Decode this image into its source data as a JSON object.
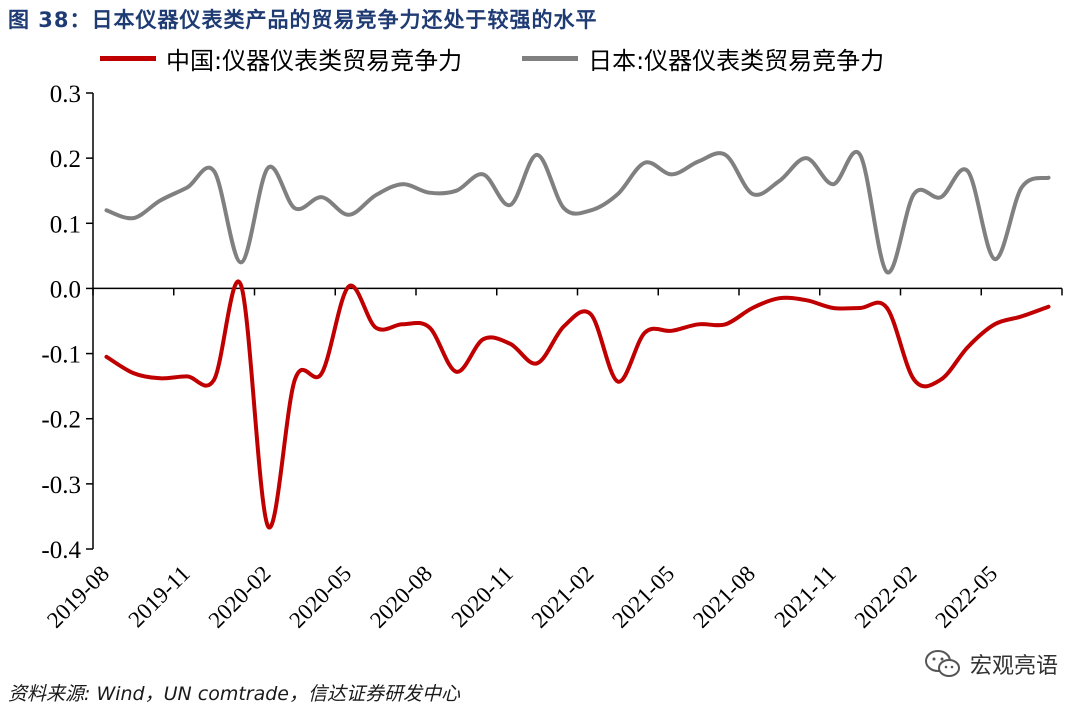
{
  "figure": {
    "title": "图 38：日本仪器仪表类产品的贸易竞争力还处于较强的水平",
    "source": "资料来源: Wind，UN comtrade，信达证券研发中心",
    "watermark": "宏观亮语",
    "watermark_icon": "wechat-icon"
  },
  "chart_data": {
    "type": "line",
    "title": "",
    "xlabel": "",
    "ylabel": "",
    "ylim": [
      -0.4,
      0.3
    ],
    "yticks": [
      "0.3",
      "0.2",
      "0.1",
      "0.0",
      "-0.1",
      "-0.2",
      "-0.3",
      "-0.4"
    ],
    "x": [
      "2019-08",
      "2019-09",
      "2019-10",
      "2019-11",
      "2019-12",
      "2020-01",
      "2020-02",
      "2020-03",
      "2020-04",
      "2020-05",
      "2020-06",
      "2020-07",
      "2020-08",
      "2020-09",
      "2020-10",
      "2020-11",
      "2020-12",
      "2021-01",
      "2021-02",
      "2021-03",
      "2021-04",
      "2021-05",
      "2021-06",
      "2021-07",
      "2021-08",
      "2021-09",
      "2021-10",
      "2021-11",
      "2021-12",
      "2022-01",
      "2022-02",
      "2022-03",
      "2022-04",
      "2022-05",
      "2022-06",
      "2022-07"
    ],
    "xtick_labels": [
      "2019-08",
      "2019-11",
      "2020-02",
      "2020-05",
      "2020-08",
      "2020-11",
      "2021-02",
      "2021-05",
      "2021-08",
      "2021-11",
      "2022-02",
      "2022-05"
    ],
    "series": [
      {
        "name": "中国:仪器仪表类贸易竞争力",
        "color": "#c00000",
        "values": [
          -0.105,
          -0.13,
          -0.138,
          -0.135,
          -0.14,
          0.005,
          -0.365,
          -0.14,
          -0.13,
          0.003,
          -0.06,
          -0.055,
          -0.06,
          -0.128,
          -0.078,
          -0.085,
          -0.115,
          -0.058,
          -0.04,
          -0.143,
          -0.068,
          -0.065,
          -0.055,
          -0.055,
          -0.03,
          -0.015,
          -0.018,
          -0.03,
          -0.03,
          -0.03,
          -0.14,
          -0.14,
          -0.09,
          -0.055,
          -0.043,
          -0.028
        ]
      },
      {
        "name": "日本:仪器仪表类贸易竞争力",
        "color": "#808080",
        "values": [
          0.12,
          0.108,
          0.135,
          0.155,
          0.18,
          0.04,
          0.185,
          0.123,
          0.14,
          0.113,
          0.143,
          0.16,
          0.147,
          0.15,
          0.175,
          0.128,
          0.205,
          0.123,
          0.12,
          0.145,
          0.193,
          0.175,
          0.195,
          0.205,
          0.145,
          0.165,
          0.2,
          0.16,
          0.205,
          0.025,
          0.145,
          0.14,
          0.18,
          0.045,
          0.155,
          0.17
        ]
      }
    ],
    "grid": false,
    "legend_position": "top"
  }
}
